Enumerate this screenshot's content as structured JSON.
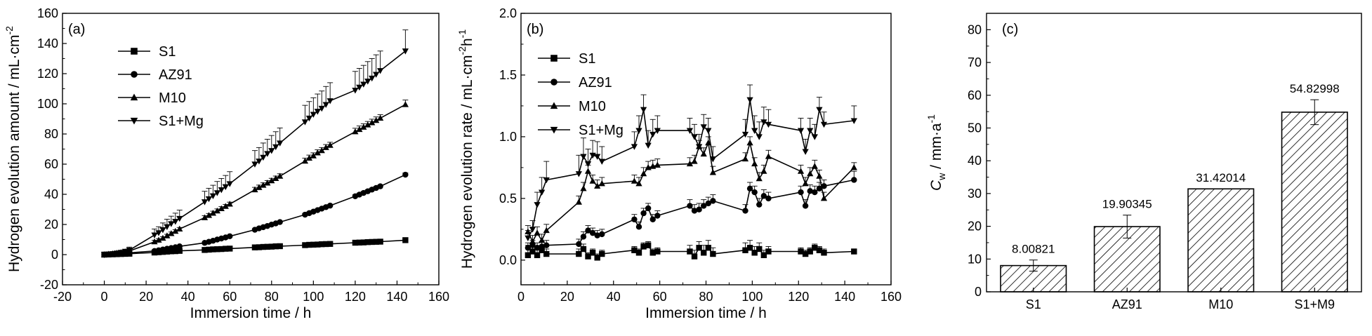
{
  "chart_data": [
    {
      "type": "line",
      "panel_label": "(a)",
      "xlabel": "Immersion time / h",
      "ylabel": "Hydrogen evolution amount / mL·cm",
      "ylabel_sup": "-2",
      "xlim": [
        -20,
        160
      ],
      "ylim": [
        -20,
        160
      ],
      "xticks": [
        -20,
        0,
        20,
        40,
        60,
        80,
        100,
        120,
        140,
        160
      ],
      "yticks": [
        -20,
        0,
        20,
        40,
        60,
        80,
        100,
        120,
        140,
        160
      ],
      "legend_position": "upper-left",
      "series": [
        {
          "name": "S1",
          "marker": "square",
          "x": [
            0,
            2,
            4,
            6,
            8,
            10,
            12,
            24,
            26,
            28,
            30,
            32,
            34,
            36,
            48,
            50,
            52,
            54,
            56,
            58,
            60,
            72,
            74,
            76,
            78,
            80,
            82,
            84,
            96,
            98,
            100,
            102,
            104,
            106,
            108,
            120,
            122,
            124,
            126,
            128,
            130,
            132,
            144
          ],
          "y": [
            0,
            0.1,
            0.2,
            0.3,
            0.4,
            0.5,
            0.6,
            1.4,
            1.6,
            1.8,
            2.0,
            2.2,
            2.3,
            2.5,
            3.1,
            3.3,
            3.5,
            3.6,
            3.7,
            3.9,
            4.0,
            4.8,
            4.9,
            5.1,
            5.2,
            5.3,
            5.5,
            5.6,
            6.3,
            6.5,
            6.6,
            6.7,
            6.9,
            7.0,
            7.1,
            7.9,
            8.0,
            8.1,
            8.3,
            8.4,
            8.5,
            8.6,
            9.6
          ],
          "err": [
            0.2,
            0.2,
            0.2,
            0.2,
            0.2,
            0.2,
            0.2,
            0.3,
            0.3,
            0.3,
            0.3,
            0.3,
            0.3,
            0.3,
            0.4,
            0.4,
            0.4,
            0.4,
            0.4,
            0.4,
            0.4,
            0.5,
            0.5,
            0.5,
            0.5,
            0.5,
            0.5,
            0.5,
            0.6,
            0.6,
            0.6,
            0.6,
            0.6,
            0.6,
            0.6,
            0.7,
            0.7,
            0.7,
            0.7,
            0.7,
            0.7,
            0.7,
            0.8
          ]
        },
        {
          "name": "AZ91",
          "marker": "circle",
          "x": [
            0,
            2,
            4,
            6,
            8,
            10,
            12,
            24,
            26,
            28,
            30,
            32,
            34,
            36,
            48,
            50,
            52,
            54,
            56,
            58,
            60,
            72,
            74,
            76,
            78,
            80,
            82,
            84,
            96,
            98,
            100,
            102,
            104,
            106,
            108,
            120,
            122,
            124,
            126,
            128,
            130,
            132,
            144
          ],
          "y": [
            0,
            0.2,
            0.4,
            0.6,
            0.8,
            1.0,
            1.2,
            2.4,
            2.9,
            3.4,
            3.9,
            4.4,
            4.9,
            5.5,
            7.8,
            8.5,
            9.2,
            10.0,
            10.7,
            11.4,
            12.2,
            16.5,
            17.4,
            18.2,
            19.0,
            19.9,
            20.7,
            21.6,
            26.5,
            27.5,
            28.5,
            29.5,
            30.5,
            31.5,
            32.5,
            38.7,
            39.8,
            40.9,
            42.0,
            43.1,
            44.2,
            45.3,
            53.0
          ],
          "err": [
            0.3,
            0.3,
            0.3,
            0.3,
            0.3,
            0.3,
            0.3,
            0.4,
            0.4,
            0.4,
            0.4,
            0.4,
            0.4,
            0.4,
            0.5,
            0.5,
            0.5,
            0.5,
            0.5,
            0.5,
            0.5,
            0.7,
            0.7,
            0.7,
            0.7,
            0.7,
            0.7,
            0.7,
            0.8,
            0.8,
            0.8,
            0.8,
            0.8,
            0.8,
            0.8,
            1.0,
            1.0,
            1.0,
            1.0,
            1.0,
            1.0,
            1.0,
            1.2
          ]
        },
        {
          "name": "M10",
          "marker": "triangle-up",
          "x": [
            0,
            2,
            4,
            6,
            8,
            10,
            12,
            24,
            26,
            28,
            30,
            32,
            34,
            36,
            48,
            50,
            52,
            54,
            56,
            58,
            60,
            72,
            74,
            76,
            78,
            80,
            82,
            84,
            96,
            98,
            100,
            102,
            104,
            106,
            108,
            120,
            122,
            124,
            126,
            128,
            130,
            132,
            144
          ],
          "y": [
            0,
            0.3,
            0.6,
            1.0,
            1.4,
            1.9,
            2.4,
            8.5,
            9.6,
            10.9,
            12.5,
            14.0,
            15.5,
            17.0,
            24.5,
            26.0,
            27.5,
            29.0,
            30.5,
            32.0,
            33.5,
            43.0,
            44.5,
            46.0,
            47.5,
            49.0,
            50.5,
            52.0,
            62.0,
            64.0,
            65.5,
            67.5,
            69.0,
            71.0,
            72.5,
            81.5,
            83.0,
            84.5,
            86.0,
            87.5,
            89.0,
            90.5,
            99.5
          ],
          "err": [
            0.5,
            0.5,
            0.5,
            0.5,
            0.5,
            0.5,
            0.5,
            1.0,
            1.0,
            1.0,
            1.0,
            1.0,
            1.0,
            1.0,
            1.3,
            1.3,
            1.3,
            1.3,
            1.3,
            1.3,
            1.3,
            1.6,
            1.6,
            1.6,
            1.6,
            1.6,
            1.6,
            1.6,
            2.0,
            2.0,
            2.0,
            2.0,
            2.0,
            2.0,
            2.0,
            2.3,
            2.3,
            2.3,
            2.3,
            2.3,
            2.3,
            2.3,
            3.0
          ]
        },
        {
          "name": "S1+Mg",
          "marker": "triangle-down",
          "x": [
            0,
            2,
            4,
            6,
            8,
            10,
            12,
            24,
            26,
            28,
            30,
            32,
            34,
            36,
            48,
            50,
            52,
            54,
            56,
            58,
            60,
            72,
            74,
            76,
            78,
            80,
            82,
            84,
            96,
            98,
            100,
            102,
            104,
            106,
            108,
            120,
            122,
            124,
            126,
            128,
            130,
            132,
            144
          ],
          "y": [
            0,
            0.3,
            0.6,
            1.0,
            1.5,
            2.2,
            3.0,
            13.0,
            14.5,
            16.5,
            18.5,
            20.5,
            22.0,
            24.0,
            35.0,
            37.0,
            39.0,
            41.0,
            43.0,
            45.0,
            47.0,
            60.0,
            62.0,
            64.5,
            67.0,
            69.0,
            71.5,
            74.0,
            88.0,
            90.5,
            93.0,
            95.0,
            97.0,
            99.5,
            102.0,
            109.0,
            111.0,
            113.0,
            115.0,
            117.0,
            119.5,
            122.0,
            135.0
          ],
          "err": [
            1.0,
            1.0,
            1.0,
            1.0,
            1.0,
            1.0,
            2.0,
            4.0,
            4.0,
            4.5,
            5.0,
            5.0,
            5.5,
            5.5,
            7.0,
            7.0,
            7.0,
            7.5,
            7.5,
            7.5,
            8.0,
            9.0,
            9.0,
            9.5,
            9.5,
            10.0,
            10.0,
            10.0,
            11.0,
            11.0,
            11.0,
            11.5,
            11.5,
            12.0,
            12.0,
            12.5,
            12.5,
            12.5,
            13.0,
            13.0,
            13.0,
            13.0,
            14.0
          ]
        }
      ]
    },
    {
      "type": "line",
      "panel_label": "(b)",
      "xlabel": "Immersion time / h",
      "ylabel": "Hydrogen evolution rate / mL·cm",
      "ylabel_sup1": "-2",
      "ylabel_mid": "h",
      "ylabel_sup2": "-1",
      "xlim": [
        0,
        160
      ],
      "ylim": [
        -0.2,
        2.0
      ],
      "xticks": [
        0,
        20,
        40,
        60,
        80,
        100,
        120,
        140,
        160
      ],
      "yticks": [
        0.0,
        0.5,
        1.0,
        1.5,
        2.0
      ],
      "ytick_labels": [
        "0.0",
        "0.5",
        "1.0",
        "1.5",
        "2.0"
      ],
      "legend_position": "upper-left",
      "series": [
        {
          "name": "S1",
          "marker": "square",
          "x": [
            3,
            5,
            7,
            9,
            11,
            25,
            27,
            29,
            31,
            33,
            35,
            49,
            51,
            53,
            55,
            57,
            59,
            73,
            75,
            77,
            79,
            81,
            83,
            97,
            99,
            101,
            103,
            105,
            107,
            121,
            123,
            125,
            127,
            129,
            131,
            144
          ],
          "y": [
            0.04,
            0.07,
            0.04,
            0.08,
            0.05,
            0.05,
            0.09,
            0.03,
            0.06,
            0.02,
            0.05,
            0.08,
            0.06,
            0.11,
            0.12,
            0.06,
            0.07,
            0.07,
            0.03,
            0.1,
            0.06,
            0.1,
            0.05,
            0.08,
            0.1,
            0.06,
            0.09,
            0.04,
            0.07,
            0.07,
            0.05,
            0.07,
            0.1,
            0.08,
            0.06,
            0.07
          ],
          "err": [
            0.08,
            0.06,
            0.05,
            0.04,
            0.04,
            0.04,
            0.04,
            0.03,
            0.03,
            0.03,
            0.03,
            0.03,
            0.03,
            0.03,
            0.03,
            0.03,
            0.03,
            0.05,
            0.05,
            0.05,
            0.06,
            0.06,
            0.05,
            0.06,
            0.06,
            0.05,
            0.05,
            0.04,
            0.04,
            0.03,
            0.03,
            0.03,
            0.03,
            0.03,
            0.03,
            0.02
          ]
        },
        {
          "name": "AZ91",
          "marker": "circle",
          "x": [
            3,
            5,
            7,
            9,
            11,
            25,
            27,
            29,
            31,
            33,
            35,
            49,
            51,
            53,
            55,
            57,
            59,
            73,
            75,
            77,
            79,
            81,
            83,
            97,
            99,
            101,
            103,
            105,
            107,
            121,
            123,
            125,
            127,
            129,
            131,
            144
          ],
          "y": [
            0.1,
            0.12,
            0.1,
            0.11,
            0.12,
            0.13,
            0.19,
            0.24,
            0.22,
            0.2,
            0.21,
            0.33,
            0.27,
            0.38,
            0.42,
            0.33,
            0.36,
            0.44,
            0.4,
            0.41,
            0.44,
            0.46,
            0.48,
            0.4,
            0.58,
            0.55,
            0.45,
            0.52,
            0.5,
            0.55,
            0.44,
            0.56,
            0.55,
            0.58,
            0.6,
            0.65
          ],
          "err": [
            0.04,
            0.04,
            0.04,
            0.04,
            0.04,
            0.04,
            0.04,
            0.04,
            0.04,
            0.04,
            0.04,
            0.04,
            0.04,
            0.04,
            0.04,
            0.04,
            0.04,
            0.05,
            0.05,
            0.05,
            0.05,
            0.05,
            0.05,
            0.05,
            0.05,
            0.05,
            0.05,
            0.05,
            0.05,
            0.05,
            0.05,
            0.05,
            0.05,
            0.05,
            0.05,
            0.07
          ]
        },
        {
          "name": "M10",
          "marker": "triangle-up",
          "x": [
            3,
            5,
            7,
            9,
            11,
            25,
            27,
            29,
            31,
            33,
            35,
            49,
            51,
            53,
            55,
            57,
            59,
            73,
            75,
            77,
            79,
            81,
            83,
            97,
            99,
            101,
            103,
            105,
            107,
            121,
            123,
            125,
            127,
            129,
            131,
            144
          ],
          "y": [
            0.23,
            0.15,
            0.22,
            0.16,
            0.24,
            0.47,
            0.58,
            0.72,
            0.64,
            0.6,
            0.62,
            0.64,
            0.62,
            0.7,
            0.75,
            0.76,
            0.77,
            0.78,
            0.8,
            0.92,
            0.86,
            0.95,
            0.71,
            0.82,
            0.95,
            0.78,
            0.66,
            0.72,
            0.84,
            0.72,
            0.62,
            0.7,
            0.76,
            0.68,
            0.5,
            0.75
          ],
          "err": [
            0.05,
            0.05,
            0.05,
            0.05,
            0.05,
            0.05,
            0.05,
            0.05,
            0.05,
            0.05,
            0.05,
            0.05,
            0.05,
            0.05,
            0.05,
            0.05,
            0.05,
            0.05,
            0.05,
            0.05,
            0.05,
            0.05,
            0.05,
            0.05,
            0.05,
            0.05,
            0.05,
            0.05,
            0.05,
            0.05,
            0.05,
            0.05,
            0.05,
            0.05,
            0.05,
            0.04
          ]
        },
        {
          "name": "S1+Mg",
          "marker": "triangle-down",
          "x": [
            3,
            5,
            7,
            9,
            11,
            25,
            27,
            29,
            31,
            33,
            35,
            49,
            51,
            53,
            55,
            57,
            59,
            73,
            75,
            77,
            79,
            81,
            83,
            97,
            99,
            101,
            103,
            105,
            107,
            121,
            123,
            125,
            127,
            129,
            131,
            144
          ],
          "y": [
            0.18,
            0.25,
            0.45,
            0.55,
            0.65,
            0.7,
            0.84,
            0.78,
            0.85,
            0.84,
            0.8,
            0.92,
            1.05,
            1.22,
            0.93,
            1.02,
            1.05,
            1.05,
            1.0,
            0.92,
            1.08,
            1.05,
            0.82,
            1.02,
            1.3,
            1.05,
            1.0,
            1.12,
            1.1,
            1.05,
            0.88,
            1.05,
            1.0,
            1.22,
            1.1,
            1.13
          ],
          "err": [
            0.06,
            0.07,
            0.1,
            0.12,
            0.15,
            0.15,
            0.15,
            0.12,
            0.12,
            0.12,
            0.12,
            0.12,
            0.12,
            0.12,
            0.12,
            0.12,
            0.12,
            0.1,
            0.1,
            0.1,
            0.1,
            0.1,
            0.1,
            0.12,
            0.12,
            0.12,
            0.12,
            0.12,
            0.12,
            0.1,
            0.1,
            0.1,
            0.1,
            0.1,
            0.1,
            0.12
          ]
        }
      ]
    },
    {
      "type": "bar",
      "panel_label": "(c)",
      "ylabel_c": "C",
      "ylabel_sub": "w",
      "ylabel_rest": " / mm·a",
      "ylabel_sup": "-1",
      "ylim": [
        0,
        85
      ],
      "yticks": [
        0,
        10,
        20,
        30,
        40,
        50,
        60,
        70,
        80
      ],
      "categories": [
        "S1",
        "AZ91",
        "M10",
        "S1+M9"
      ],
      "values": [
        8.00821,
        19.90345,
        31.42014,
        54.82998
      ],
      "value_labels": [
        "8.00821",
        "19.90345",
        "31.42014",
        "54.82998"
      ],
      "errors": [
        1.7,
        3.5,
        0.0,
        3.8
      ],
      "fill": "hatched"
    }
  ]
}
